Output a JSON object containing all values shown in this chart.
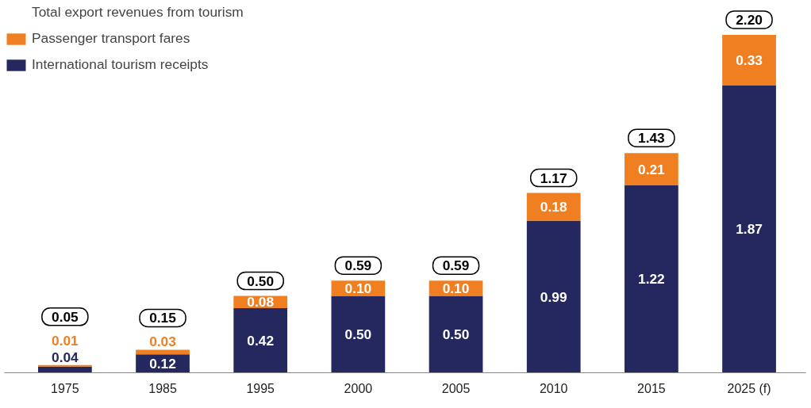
{
  "chart_data": {
    "type": "bar",
    "stacked": true,
    "categories": [
      "1975",
      "1985",
      "1995",
      "2000",
      "2005",
      "2010",
      "2015",
      "2025 (f)"
    ],
    "series": [
      {
        "name": "International tourism receipts",
        "color": "#24285e",
        "values": [
          0.04,
          0.12,
          0.42,
          0.5,
          0.5,
          0.99,
          1.22,
          1.87
        ],
        "value_labels": [
          "0.04",
          "0.12",
          "0.42",
          "0.50",
          "0.50",
          "0.99",
          "1.22",
          "1.87"
        ]
      },
      {
        "name": "Passenger transport fares",
        "color": "#f07f22",
        "values": [
          0.01,
          0.03,
          0.08,
          0.1,
          0.1,
          0.18,
          0.21,
          0.33
        ],
        "value_labels": [
          "0.01",
          "0.03",
          "0.08",
          "0.10",
          "0.10",
          "0.18",
          "0.21",
          "0.33"
        ]
      }
    ],
    "totals": [
      "0.05",
      "0.15",
      "0.50",
      "0.59",
      "0.59",
      "1.17",
      "1.43",
      "2.20"
    ],
    "annotations": [
      "Total export revenues from tourism"
    ],
    "legend": "top left",
    "grid": false
  }
}
